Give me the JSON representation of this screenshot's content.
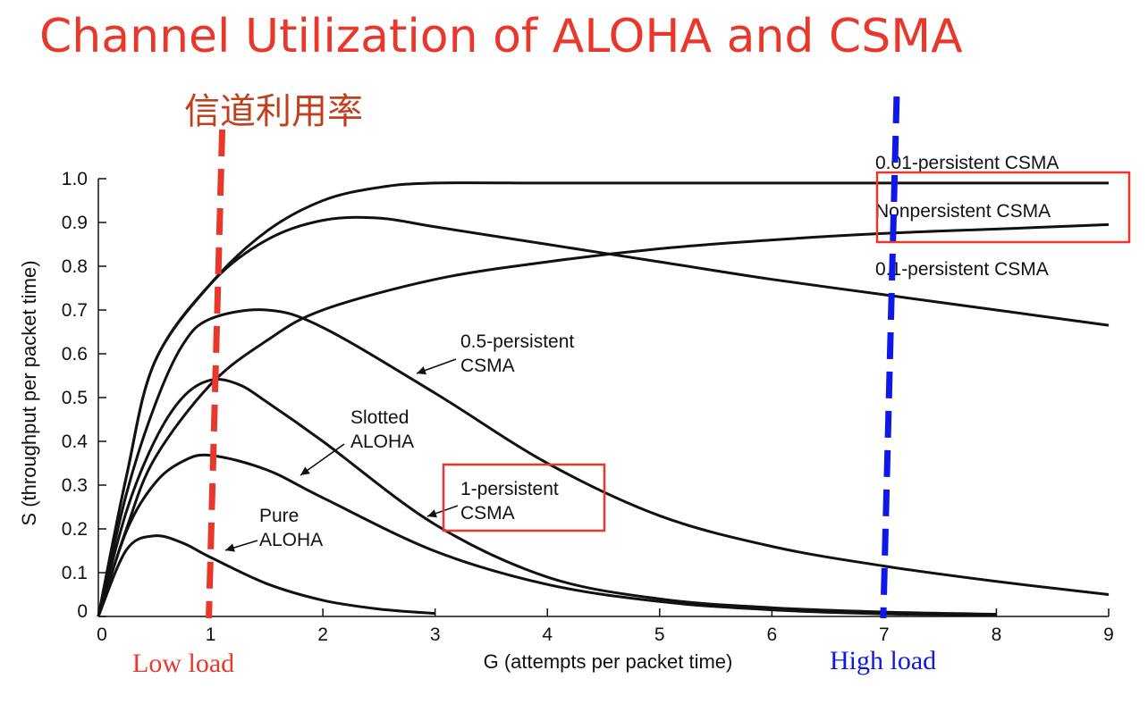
{
  "chart_data": {
    "type": "line",
    "title": "Channel Utilization of ALOHA and CSMA",
    "subtitle": "信道利用率",
    "xlabel": "G (attempts per packet time)",
    "ylabel": "S (throughput per packet time)",
    "xlim": [
      0,
      9
    ],
    "ylim": [
      0,
      1.0
    ],
    "x_ticks": [
      "0",
      "1",
      "2",
      "3",
      "4",
      "5",
      "6",
      "7",
      "8",
      "9"
    ],
    "y_ticks": [
      "0",
      "0.1",
      "0.2",
      "0.3",
      "0.4",
      "0.5",
      "0.6",
      "0.7",
      "0.8",
      "0.9",
      "1.0"
    ],
    "grid": false,
    "series": [
      {
        "name": "Pure ALOHA",
        "label_lines": [
          "Pure",
          "ALOHA"
        ],
        "color": "#111111",
        "x": [
          0,
          0.25,
          0.5,
          0.75,
          1,
          1.5,
          2,
          2.5,
          3
        ],
        "y": [
          0,
          0.152,
          0.184,
          0.168,
          0.135,
          0.075,
          0.037,
          0.017,
          0.007
        ]
      },
      {
        "name": "Slotted ALOHA",
        "label_lines": [
          "Slotted",
          "ALOHA"
        ],
        "color": "#111111",
        "x": [
          0,
          0.25,
          0.5,
          0.75,
          1,
          1.5,
          2,
          3,
          4,
          5,
          6,
          7,
          8
        ],
        "y": [
          0,
          0.195,
          0.303,
          0.354,
          0.368,
          0.335,
          0.271,
          0.149,
          0.073,
          0.034,
          0.015,
          0.006,
          0.003
        ]
      },
      {
        "name": "1-persistent CSMA",
        "label_lines": [
          "1-persistent",
          "CSMA"
        ],
        "color": "#111111",
        "x": [
          0,
          0.25,
          0.5,
          0.75,
          1,
          1.25,
          1.5,
          2,
          3,
          4,
          5,
          6,
          7,
          8
        ],
        "y": [
          0,
          0.24,
          0.4,
          0.5,
          0.54,
          0.53,
          0.49,
          0.4,
          0.21,
          0.09,
          0.04,
          0.02,
          0.01,
          0.005
        ]
      },
      {
        "name": "0.5-persistent CSMA",
        "label_lines": [
          "0.5-persistent",
          "CSMA"
        ],
        "color": "#111111",
        "x": [
          0,
          0.25,
          0.5,
          0.75,
          1,
          1.5,
          2,
          3,
          4,
          5,
          6,
          7,
          8,
          9
        ],
        "y": [
          0,
          0.28,
          0.48,
          0.62,
          0.68,
          0.7,
          0.66,
          0.51,
          0.35,
          0.23,
          0.16,
          0.115,
          0.08,
          0.05
        ]
      },
      {
        "name": "0.1-persistent CSMA",
        "label_lines": [
          "0.1-persistent CSMA"
        ],
        "color": "#111111",
        "x": [
          0,
          0.25,
          0.5,
          1,
          1.5,
          2,
          2.5,
          3,
          4,
          5,
          6,
          7,
          8,
          9
        ],
        "y": [
          0,
          0.32,
          0.58,
          0.76,
          0.86,
          0.905,
          0.91,
          0.89,
          0.85,
          0.81,
          0.77,
          0.735,
          0.7,
          0.665
        ]
      },
      {
        "name": "Nonpersistent CSMA",
        "label_lines": [
          "Nonpersistent CSMA"
        ],
        "color": "#111111",
        "x": [
          0,
          0.25,
          0.5,
          1,
          1.5,
          2,
          3,
          4,
          5,
          6,
          7,
          8,
          9
        ],
        "y": [
          0,
          0.2,
          0.36,
          0.53,
          0.63,
          0.7,
          0.77,
          0.81,
          0.84,
          0.86,
          0.875,
          0.885,
          0.895
        ]
      },
      {
        "name": "0.01-persistent CSMA",
        "label_lines": [
          "0.01-persistent CSMA"
        ],
        "color": "#111111",
        "x": [
          0,
          0.25,
          0.5,
          1,
          1.5,
          2,
          2.5,
          3,
          4,
          5,
          6,
          7,
          8,
          9
        ],
        "y": [
          0,
          0.32,
          0.58,
          0.76,
          0.88,
          0.95,
          0.98,
          0.99,
          0.99,
          0.99,
          0.99,
          0.99,
          0.99,
          0.99
        ]
      }
    ],
    "annotations": {
      "low_load": {
        "text": "Low load",
        "x": 1,
        "color": "#e8372b"
      },
      "high_load": {
        "text": "High load",
        "x": 7,
        "color": "#1018e8"
      }
    }
  }
}
